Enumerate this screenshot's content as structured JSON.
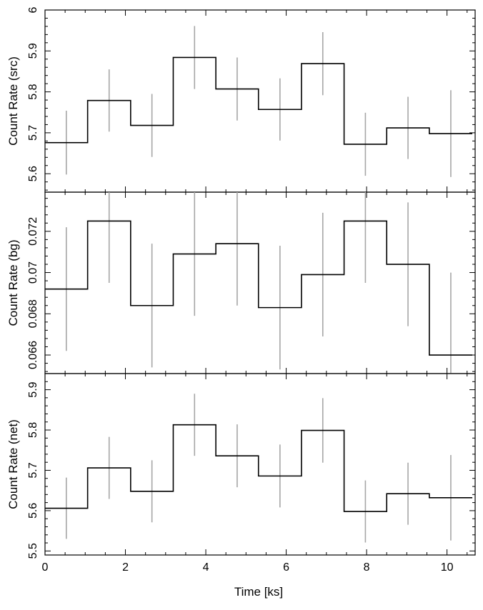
{
  "chart_data": {
    "type": "line",
    "drawstyle": "steps",
    "xlabel": "Time [ks]",
    "xlim": [
      0,
      10.7
    ],
    "xticks": [
      0,
      2,
      4,
      6,
      8,
      10
    ],
    "bins": [
      {
        "lo": 0.0,
        "hi": 1.06
      },
      {
        "lo": 1.06,
        "hi": 2.13
      },
      {
        "lo": 2.13,
        "hi": 3.19
      },
      {
        "lo": 3.19,
        "hi": 4.25
      },
      {
        "lo": 4.25,
        "hi": 5.31
      },
      {
        "lo": 5.31,
        "hi": 6.38
      },
      {
        "lo": 6.38,
        "hi": 7.44
      },
      {
        "lo": 7.44,
        "hi": 8.5
      },
      {
        "lo": 8.5,
        "hi": 9.56
      },
      {
        "lo": 9.56,
        "hi": 10.63
      }
    ],
    "panels": [
      {
        "name": "src",
        "ylabel": "Count Rate (src)",
        "ylim": [
          5.555,
          6.0
        ],
        "yticks": [
          5.6,
          5.7,
          5.8,
          5.9,
          6
        ],
        "ytick_labels": [
          "5.6",
          "5.7",
          "5.8",
          "5.9",
          "6"
        ],
        "values": [
          5.676,
          5.779,
          5.718,
          5.884,
          5.807,
          5.757,
          5.869,
          5.672,
          5.712,
          5.698
        ],
        "errors": [
          0.078,
          0.076,
          0.077,
          0.077,
          0.077,
          0.076,
          0.077,
          0.077,
          0.076,
          0.106
        ]
      },
      {
        "name": "bg",
        "ylabel": "Count Rate (bg)",
        "ylim": [
          0.0651,
          0.0739
        ],
        "yticks": [
          0.066,
          0.068,
          0.07,
          0.072
        ],
        "ytick_labels": [
          "0.066",
          "0.068",
          "0.07",
          "0.072"
        ],
        "values": [
          0.0692,
          0.0725,
          0.0684,
          0.0709,
          0.0714,
          0.0683,
          0.0699,
          0.0725,
          0.0704,
          0.066
        ],
        "errors": [
          0.003,
          0.003,
          0.003,
          0.003,
          0.003,
          0.003,
          0.003,
          0.003,
          0.003,
          0.004
        ]
      },
      {
        "name": "net",
        "ylabel": "Count Rate (net)",
        "ylim": [
          5.49,
          5.94
        ],
        "yticks": [
          5.5,
          5.6,
          5.7,
          5.8,
          5.9
        ],
        "ytick_labels": [
          "5.5",
          "5.6",
          "5.7",
          "5.8",
          "5.9"
        ],
        "values": [
          5.606,
          5.706,
          5.648,
          5.813,
          5.736,
          5.686,
          5.799,
          5.598,
          5.642,
          5.632
        ],
        "errors": [
          0.076,
          0.077,
          0.077,
          0.077,
          0.078,
          0.078,
          0.08,
          0.077,
          0.077,
          0.106
        ]
      }
    ]
  }
}
